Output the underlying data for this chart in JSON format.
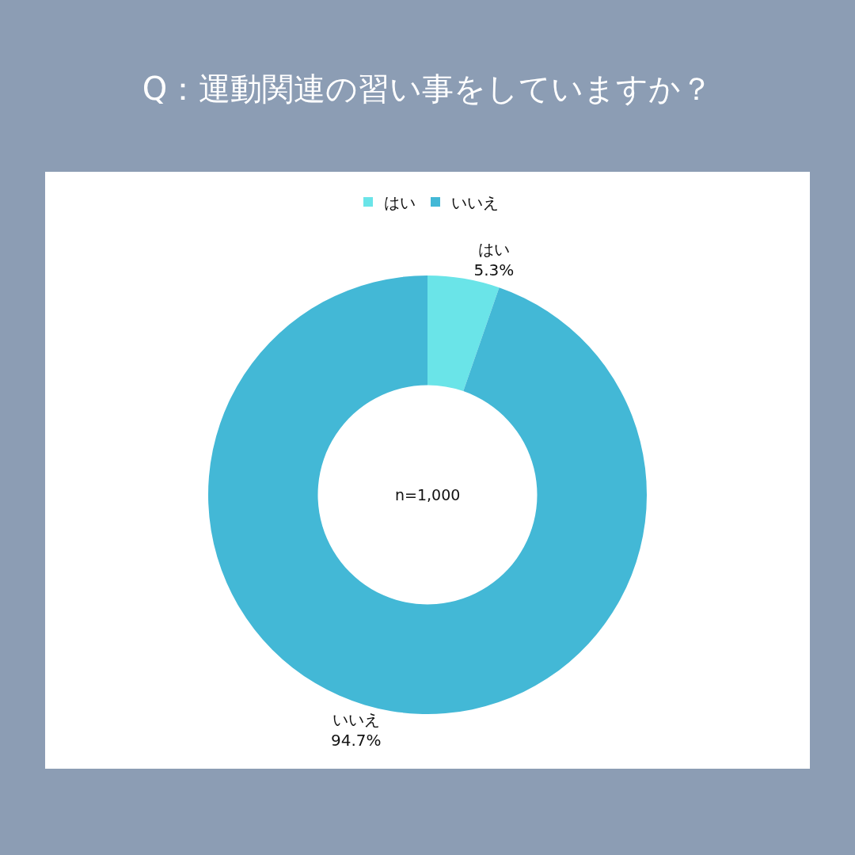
{
  "chart_data": {
    "type": "donut",
    "title": "Q：運動関連の習い事をしていますか？",
    "categories": [
      "はい",
      "いいえ"
    ],
    "values": [
      5.3,
      94.7
    ],
    "colors": [
      "#6ae4e8",
      "#43b8d6"
    ],
    "value_labels": [
      "5.3%",
      "94.7%"
    ],
    "legend": "top",
    "annotations": [
      "n=1,000"
    ]
  }
}
